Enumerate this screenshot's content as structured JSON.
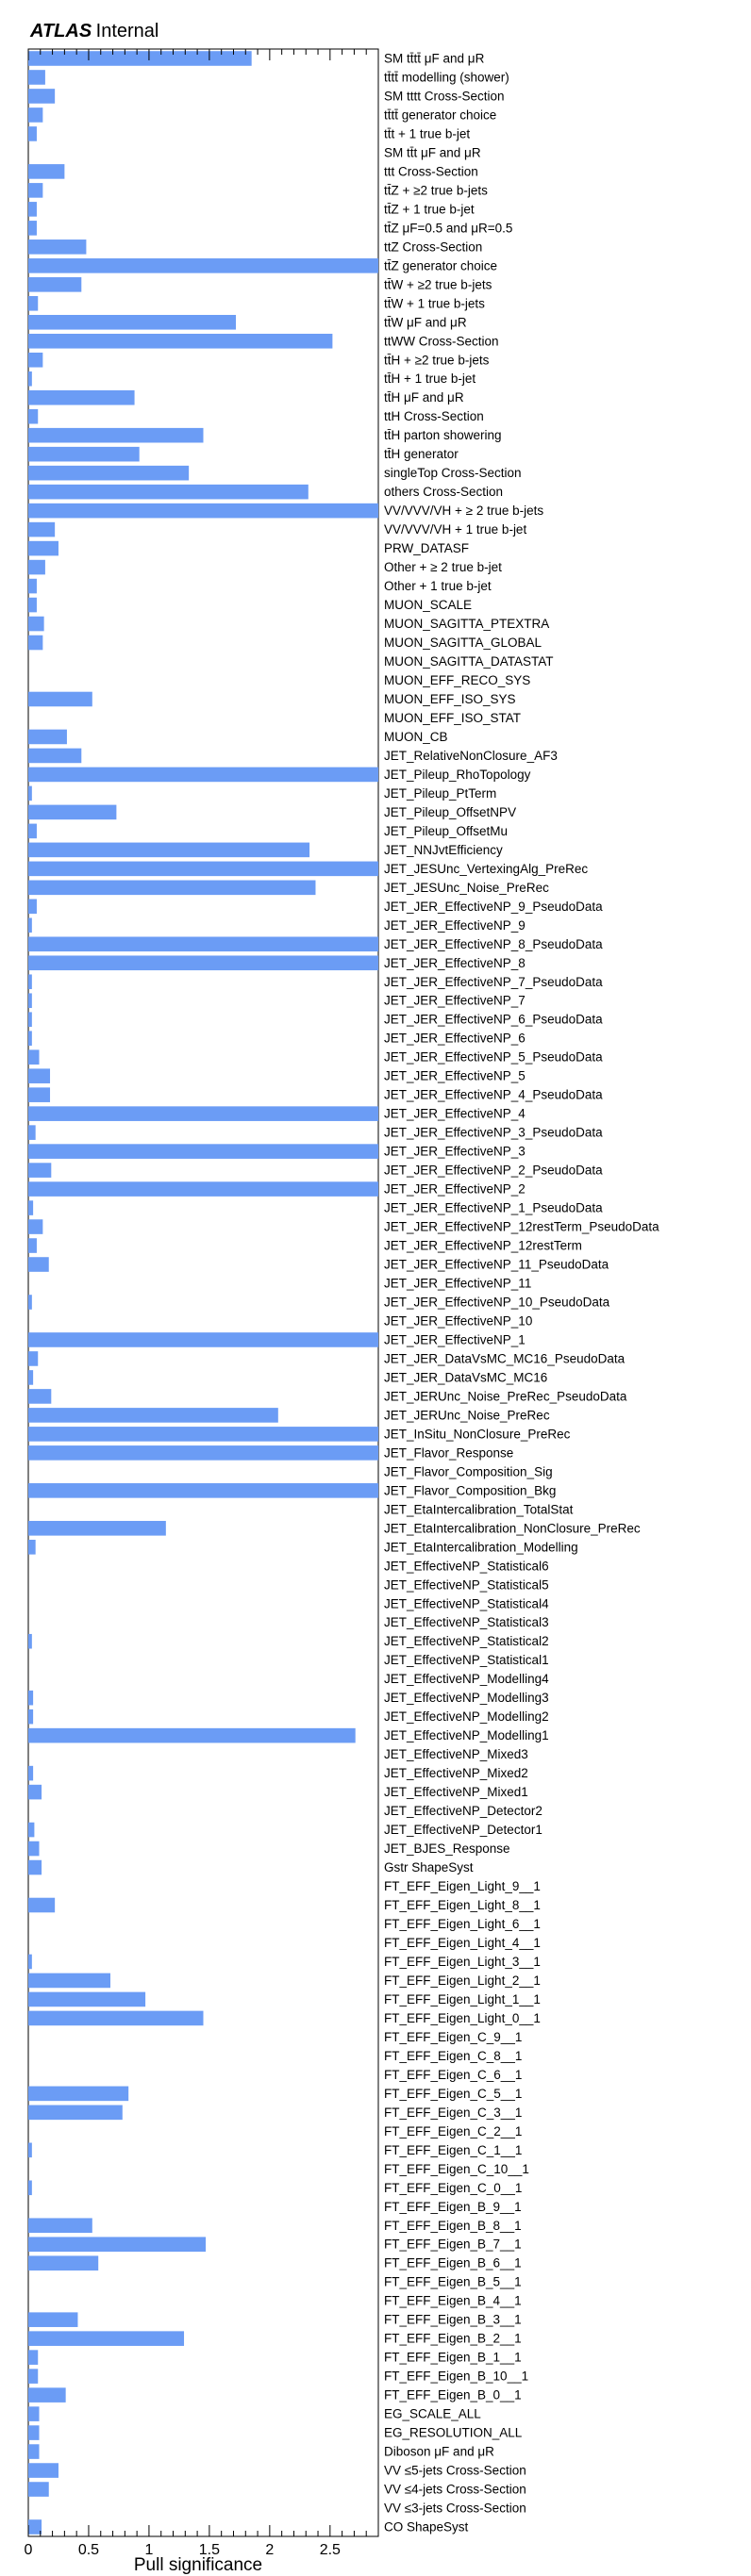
{
  "header": {
    "experiment": "ATLAS",
    "status": "Internal"
  },
  "chart_data": {
    "type": "bar",
    "orientation": "horizontal",
    "xlabel": "Pull significance",
    "xlim": [
      0,
      2.9
    ],
    "xticks": [
      "0",
      "0.5",
      "1",
      "1.5",
      "2",
      "2.5"
    ],
    "bar_color": "#6b9cf5",
    "categories": [
      "SM tt̄tt̄ μF and μR",
      "tt̄tt̄ modelling (shower)",
      "SM tttt Cross-Section",
      "tt̄tt̄ generator choice",
      "tt̄t + 1 true b-jet",
      "SM tt̄t μF and μR",
      "ttt Cross-Section",
      "tt̄Z + ≥2 true b-jets",
      "tt̄Z + 1 true b-jet",
      "tt̄Z μF=0.5 and μR=0.5",
      "ttZ Cross-Section",
      "tt̄Z generator choice",
      "tt̄W + ≥2 true b-jets",
      "tt̄W + 1 true b-jets",
      "tt̄W μF and μR",
      "ttWW Cross-Section",
      "tt̄H + ≥2 true b-jets",
      "tt̄H + 1 true b-jet",
      "tt̄H μF and μR",
      "ttH Cross-Section",
      "tt̄H parton showering",
      "tt̄H generator",
      "singleTop Cross-Section",
      "others Cross-Section",
      "VV/VVV/VH + ≥ 2 true b-jets",
      "VV/VVV/VH + 1 true b-jet",
      "PRW_DATASF",
      "Other + ≥ 2 true b-jet",
      "Other + 1 true b-jet",
      "MUON_SCALE",
      "MUON_SAGITTA_PTEXTRA",
      "MUON_SAGITTA_GLOBAL",
      "MUON_SAGITTA_DATASTAT",
      "MUON_EFF_RECO_SYS",
      "MUON_EFF_ISO_SYS",
      "MUON_EFF_ISO_STAT",
      "MUON_CB",
      "JET_RelativeNonClosure_AF3",
      "JET_Pileup_RhoTopology",
      "JET_Pileup_PtTerm",
      "JET_Pileup_OffsetNPV",
      "JET_Pileup_OffsetMu",
      "JET_NNJvtEfficiency",
      "JET_JESUnc_VertexingAlg_PreRec",
      "JET_JESUnc_Noise_PreRec",
      "JET_JER_EffectiveNP_9_PseudoData",
      "JET_JER_EffectiveNP_9",
      "JET_JER_EffectiveNP_8_PseudoData",
      "JET_JER_EffectiveNP_8",
      "JET_JER_EffectiveNP_7_PseudoData",
      "JET_JER_EffectiveNP_7",
      "JET_JER_EffectiveNP_6_PseudoData",
      "JET_JER_EffectiveNP_6",
      "JET_JER_EffectiveNP_5_PseudoData",
      "JET_JER_EffectiveNP_5",
      "JET_JER_EffectiveNP_4_PseudoData",
      "JET_JER_EffectiveNP_4",
      "JET_JER_EffectiveNP_3_PseudoData",
      "JET_JER_EffectiveNP_3",
      "JET_JER_EffectiveNP_2_PseudoData",
      "JET_JER_EffectiveNP_2",
      "JET_JER_EffectiveNP_1_PseudoData",
      "JET_JER_EffectiveNP_12restTerm_PseudoData",
      "JET_JER_EffectiveNP_12restTerm",
      "JET_JER_EffectiveNP_11_PseudoData",
      "JET_JER_EffectiveNP_11",
      "JET_JER_EffectiveNP_10_PseudoData",
      "JET_JER_EffectiveNP_10",
      "JET_JER_EffectiveNP_1",
      "JET_JER_DataVsMC_MC16_PseudoData",
      "JET_JER_DataVsMC_MC16",
      "JET_JERUnc_Noise_PreRec_PseudoData",
      "JET_JERUnc_Noise_PreRec",
      "JET_InSitu_NonClosure_PreRec",
      "JET_Flavor_Response",
      "JET_Flavor_Composition_Sig",
      "JET_Flavor_Composition_Bkg",
      "JET_EtaIntercalibration_TotalStat",
      "JET_EtaIntercalibration_NonClosure_PreRec",
      "JET_EtaIntercalibration_Modelling",
      "JET_EffectiveNP_Statistical6",
      "JET_EffectiveNP_Statistical5",
      "JET_EffectiveNP_Statistical4",
      "JET_EffectiveNP_Statistical3",
      "JET_EffectiveNP_Statistical2",
      "JET_EffectiveNP_Statistical1",
      "JET_EffectiveNP_Modelling4",
      "JET_EffectiveNP_Modelling3",
      "JET_EffectiveNP_Modelling2",
      "JET_EffectiveNP_Modelling1",
      "JET_EffectiveNP_Mixed3",
      "JET_EffectiveNP_Mixed2",
      "JET_EffectiveNP_Mixed1",
      "JET_EffectiveNP_Detector2",
      "JET_EffectiveNP_Detector1",
      "JET_BJES_Response",
      "Gstr ShapeSyst",
      "FT_EFF_Eigen_Light_9__1",
      "FT_EFF_Eigen_Light_8__1",
      "FT_EFF_Eigen_Light_6__1",
      "FT_EFF_Eigen_Light_4__1",
      "FT_EFF_Eigen_Light_3__1",
      "FT_EFF_Eigen_Light_2__1",
      "FT_EFF_Eigen_Light_1__1",
      "FT_EFF_Eigen_Light_0__1",
      "FT_EFF_Eigen_C_9__1",
      "FT_EFF_Eigen_C_8__1",
      "FT_EFF_Eigen_C_6__1",
      "FT_EFF_Eigen_C_5__1",
      "FT_EFF_Eigen_C_3__1",
      "FT_EFF_Eigen_C_2__1",
      "FT_EFF_Eigen_C_1__1",
      "FT_EFF_Eigen_C_10__1",
      "FT_EFF_Eigen_C_0__1",
      "FT_EFF_Eigen_B_9__1",
      "FT_EFF_Eigen_B_8__1",
      "FT_EFF_Eigen_B_7__1",
      "FT_EFF_Eigen_B_6__1",
      "FT_EFF_Eigen_B_5__1",
      "FT_EFF_Eigen_B_4__1",
      "FT_EFF_Eigen_B_3__1",
      "FT_EFF_Eigen_B_2__1",
      "FT_EFF_Eigen_B_1__1",
      "FT_EFF_Eigen_B_10__1",
      "FT_EFF_Eigen_B_0__1",
      "EG_SCALE_ALL",
      "EG_RESOLUTION_ALL",
      "Diboson μF and μR",
      "VV ≤5-jets Cross-Section",
      "VV ≤4-jets Cross-Section",
      "VV ≤3-jets Cross-Section",
      "CO ShapeSyst"
    ],
    "values": [
      1.85,
      0.14,
      0.22,
      0.12,
      0.07,
      0.0,
      0.3,
      0.12,
      0.07,
      0.07,
      0.48,
      2.9,
      0.44,
      0.08,
      1.72,
      2.52,
      0.12,
      0.03,
      0.88,
      0.08,
      1.45,
      0.92,
      1.33,
      2.32,
      2.9,
      0.22,
      0.25,
      0.14,
      0.07,
      0.07,
      0.13,
      0.12,
      0.0,
      0.0,
      0.53,
      0.0,
      0.32,
      0.44,
      2.9,
      0.03,
      0.73,
      0.07,
      2.33,
      2.9,
      2.38,
      0.07,
      0.03,
      2.9,
      2.9,
      0.03,
      0.03,
      0.03,
      0.03,
      0.09,
      0.18,
      0.18,
      2.9,
      0.06,
      2.9,
      0.19,
      2.9,
      0.04,
      0.12,
      0.07,
      0.17,
      0.0,
      0.03,
      0.0,
      2.9,
      0.08,
      0.04,
      0.19,
      2.07,
      2.9,
      2.9,
      0.0,
      2.9,
      0.0,
      1.14,
      0.06,
      0.0,
      0.0,
      0.0,
      0.0,
      0.03,
      0.0,
      0.0,
      0.04,
      0.04,
      2.71,
      0.0,
      0.04,
      0.11,
      0.0,
      0.05,
      0.09,
      0.11,
      0.0,
      0.22,
      0.0,
      0.0,
      0.03,
      0.68,
      0.97,
      1.45,
      0.0,
      0.0,
      0.0,
      0.83,
      0.78,
      0.0,
      0.03,
      0.0,
      0.03,
      0.0,
      0.53,
      1.47,
      0.58,
      0.0,
      0.0,
      0.41,
      1.29,
      0.08,
      0.08,
      0.31,
      0.09,
      0.09,
      0.09,
      0.25,
      0.17,
      0.0,
      0.11
    ]
  }
}
